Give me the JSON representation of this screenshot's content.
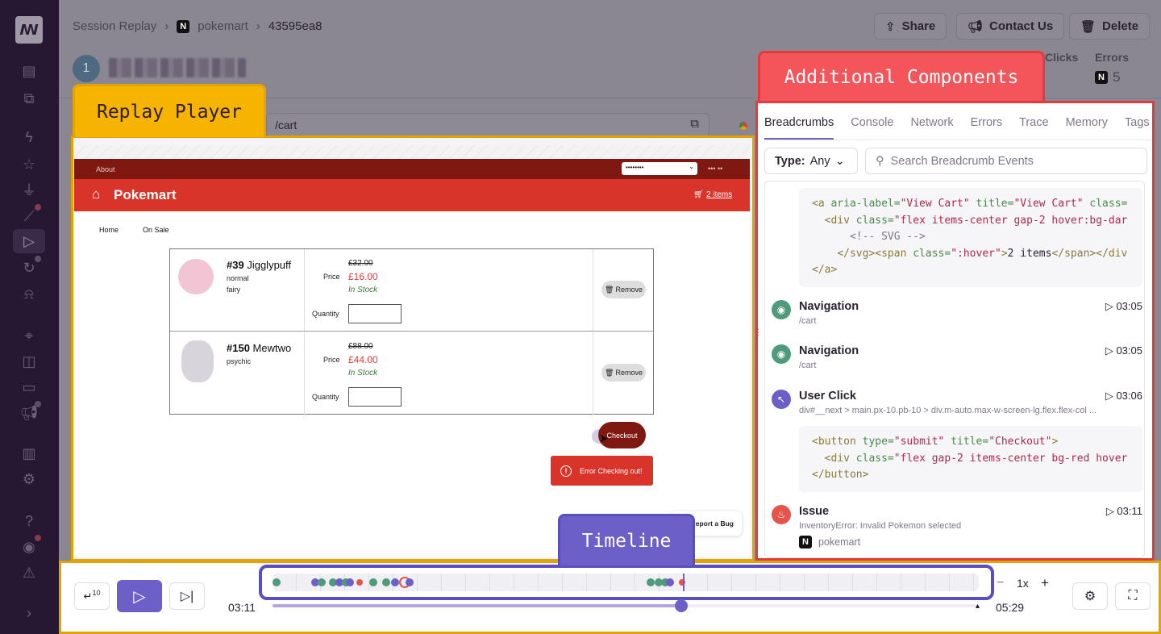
{
  "breadcrumbs": [
    "Session Replay",
    "pokemart",
    "43595ea8"
  ],
  "header_buttons": {
    "share": "Share",
    "contact": "Contact Us",
    "delete": "Delete"
  },
  "user": {
    "avatar_letter": "1"
  },
  "stats": {
    "clicks_label": "Clicks",
    "errors_label": "Errors",
    "errors_count": "5"
  },
  "annotations": {
    "replay": "Replay Player",
    "additional": "Additional Components",
    "timeline": "Timeline"
  },
  "url": "/cart",
  "site": {
    "about": "About",
    "select_value": "••••••••",
    "top_right": "••• ••",
    "brand": "Pokemart",
    "cart": "2 items",
    "nav": [
      "Home",
      "On Sale"
    ],
    "items": [
      {
        "number": "#39",
        "name": "Jigglypuff",
        "types": [
          "normal",
          "fairy"
        ],
        "old_price": "£32.00",
        "price_label": "Price",
        "price": "£16.00",
        "stock": "In Stock",
        "qty_label": "Quantity",
        "remove": "Remove"
      },
      {
        "number": "#150",
        "name": "Mewtwo",
        "types": [
          "psychic"
        ],
        "old_price": "£88.00",
        "price_label": "Price",
        "price": "£44.00",
        "stock": "In Stock",
        "qty_label": "Quantity",
        "remove": "Remove"
      }
    ],
    "checkout": "Checkout",
    "error": "Error Checking out!",
    "report_bug": "Report a Bug"
  },
  "panel": {
    "tabs": [
      "Breadcrumbs",
      "Console",
      "Network",
      "Errors",
      "Trace",
      "Memory",
      "Tags"
    ],
    "active_tab": "Breadcrumbs",
    "filter_label": "Type:",
    "filter_value": "Any",
    "search_placeholder": "Search Breadcrumb Events",
    "crumbs": [
      {
        "type": "navigation",
        "title": "Navigation",
        "sub": "/cart",
        "time": "03:05"
      },
      {
        "type": "navigation",
        "title": "Navigation",
        "sub": "/cart",
        "time": "03:05"
      },
      {
        "type": "click",
        "title": "User Click",
        "sub": "div#__next > main.px-10.pb-10 > div.m-auto.max-w-screen-lg.flex.flex-col ...",
        "time": "03:06"
      },
      {
        "type": "issue",
        "title": "Issue",
        "sub": "InventoryError: Invalid Pokemon selected",
        "project": "pokemart",
        "time": "03:11"
      }
    ]
  },
  "player": {
    "current_time": "03:11",
    "total_time": "05:29",
    "progress_fraction": 0.58,
    "speed": "1x",
    "skip_seconds": "10"
  },
  "timeline_events": [
    {
      "t": 2,
      "type": "navigation"
    },
    {
      "t": 20,
      "type": "click"
    },
    {
      "t": 23,
      "type": "navigation"
    },
    {
      "t": 28,
      "type": "navigation"
    },
    {
      "t": 31,
      "type": "click"
    },
    {
      "t": 34,
      "type": "navigation"
    },
    {
      "t": 36,
      "type": "click"
    },
    {
      "t": 41,
      "type": "error"
    },
    {
      "t": 47,
      "type": "navigation"
    },
    {
      "t": 53,
      "type": "navigation"
    },
    {
      "t": 57,
      "type": "click"
    },
    {
      "t": 61,
      "type": "issue"
    },
    {
      "t": 64,
      "type": "click"
    },
    {
      "t": 176,
      "type": "navigation"
    },
    {
      "t": 180,
      "type": "navigation"
    },
    {
      "t": 183,
      "type": "navigation"
    },
    {
      "t": 185,
      "type": "click"
    },
    {
      "t": 191,
      "type": "error"
    }
  ],
  "colors": {
    "accent": "#6c5fc8",
    "navigation": "#4e9a7c",
    "click": "#6c5fc8",
    "error": "#e5534b",
    "brand_red": "#d8342a",
    "brand_dark": "#7e1810"
  }
}
